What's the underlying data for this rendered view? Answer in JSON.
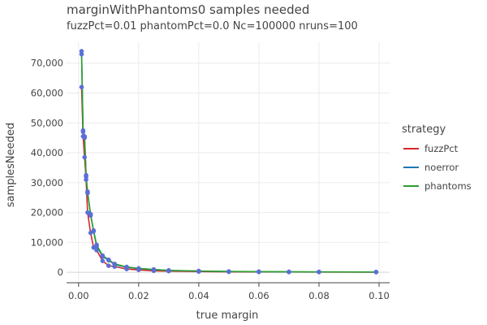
{
  "chart_data": {
    "type": "line",
    "title": "marginWithPhantoms0 samples needed",
    "subtitle": "fuzzPct=0.01 phantomPct=0.0 Nc=100000 nruns=100",
    "xlabel": "true margin",
    "ylabel": "samplesNeeded",
    "xlim": [
      -0.004,
      0.1035
    ],
    "ylim": [
      -3500,
      77000
    ],
    "x_ticks": [
      0.0,
      0.02,
      0.04,
      0.06,
      0.08,
      0.1
    ],
    "x_tick_labels": [
      "0.00",
      "0.02",
      "0.04",
      "0.06",
      "0.08",
      "0.10"
    ],
    "y_ticks": [
      0,
      10000,
      20000,
      30000,
      40000,
      50000,
      60000,
      70000
    ],
    "y_tick_labels": [
      "0",
      "10,000",
      "20,000",
      "30,000",
      "40,000",
      "50,000",
      "60,000",
      "70,000"
    ],
    "grid": true,
    "legend": {
      "title": "strategy",
      "placement": "right"
    },
    "series": [
      {
        "name": "fuzzPct",
        "color": "#d62728",
        "x": [
          0.001,
          0.0015,
          0.002,
          0.0025,
          0.003,
          0.004,
          0.005,
          0.006,
          0.008,
          0.01,
          0.012,
          0.016,
          0.02,
          0.025,
          0.03,
          0.04,
          0.05,
          0.06,
          0.07,
          0.08,
          0.099
        ],
        "y": [
          62000,
          45500,
          38500,
          31000,
          20000,
          13200,
          8300,
          7400,
          3800,
          2200,
          1900,
          1100,
          800,
          500,
          400,
          250,
          150,
          120,
          100,
          80,
          60
        ]
      },
      {
        "name": "noerror",
        "color": "#1f77b4",
        "x": [
          0.001,
          0.0015,
          0.002,
          0.0025,
          0.003,
          0.004,
          0.005,
          0.006,
          0.008,
          0.01,
          0.012,
          0.016,
          0.02,
          0.025,
          0.03,
          0.04,
          0.05,
          0.06,
          0.07,
          0.08,
          0.099
        ],
        "y": [
          73000,
          47500,
          45500,
          32500,
          26500,
          19500,
          13700,
          8800,
          5300,
          4000,
          2600,
          1700,
          1200,
          900,
          600,
          400,
          250,
          200,
          150,
          120,
          90
        ]
      },
      {
        "name": "phantoms",
        "color": "#2ca02c",
        "x": [
          0.001,
          0.0015,
          0.002,
          0.0025,
          0.003,
          0.004,
          0.005,
          0.006,
          0.008,
          0.01,
          0.012,
          0.016,
          0.02,
          0.025,
          0.03,
          0.04,
          0.05,
          0.06,
          0.07,
          0.08,
          0.099
        ],
        "y": [
          74000,
          47000,
          45000,
          32000,
          27000,
          19000,
          14000,
          9200,
          5600,
          4200,
          2800,
          1800,
          1300,
          950,
          650,
          420,
          260,
          210,
          160,
          130,
          100
        ]
      }
    ],
    "marker_color": "#5a6fd6"
  }
}
